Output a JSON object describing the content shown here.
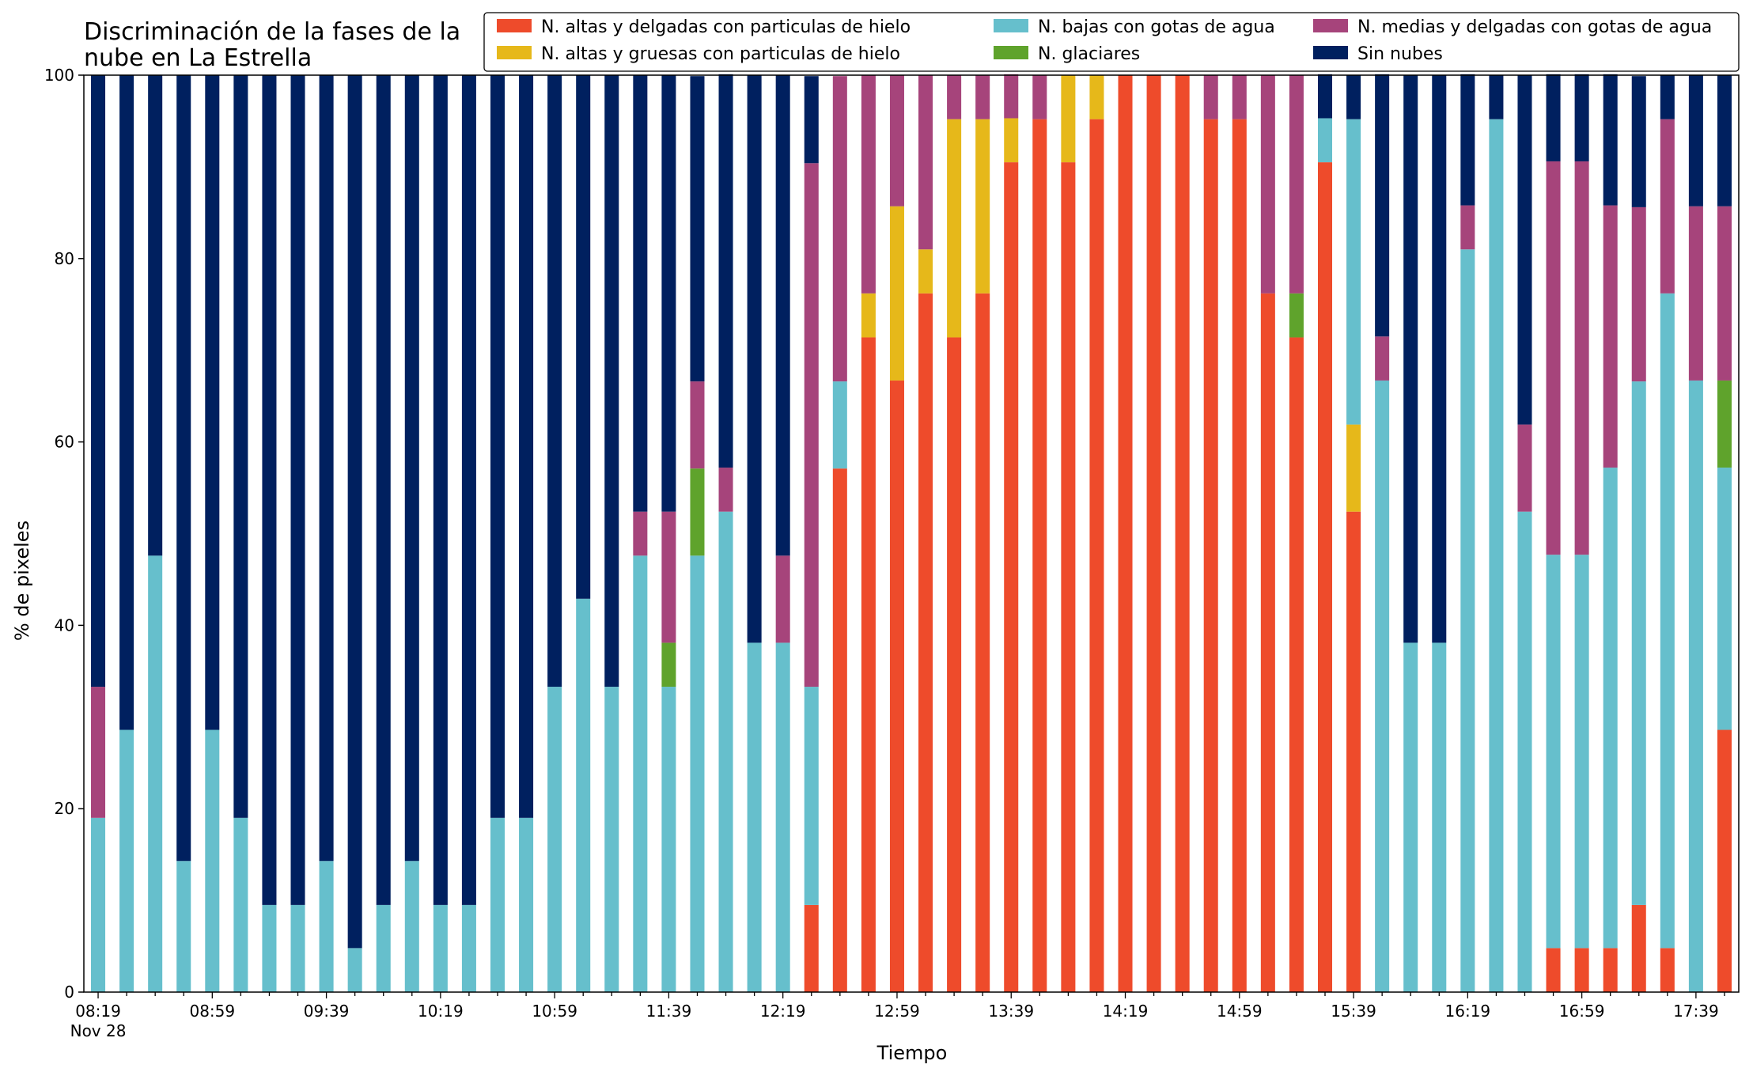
{
  "chart_data": {
    "type": "bar",
    "stacked": true,
    "title": "Discriminación de la fases de la\nnube en La Estrella",
    "xlabel": "Tiempo",
    "ylabel": "% de pixeles",
    "ylim": [
      0,
      100
    ],
    "yticks": [
      0,
      20,
      40,
      60,
      80,
      100
    ],
    "grid": false,
    "legend_position": "top-right",
    "legend_columns": 3,
    "x_tick_labels": [
      {
        "index": 0,
        "label": "08:19",
        "sublabel": "Nov 28"
      },
      {
        "index": 4,
        "label": "08:59"
      },
      {
        "index": 8,
        "label": "09:39"
      },
      {
        "index": 12,
        "label": "10:19"
      },
      {
        "index": 16,
        "label": "10:59"
      },
      {
        "index": 20,
        "label": "11:39"
      },
      {
        "index": 24,
        "label": "12:19"
      },
      {
        "index": 28,
        "label": "12:59"
      },
      {
        "index": 32,
        "label": "13:39"
      },
      {
        "index": 36,
        "label": "14:19"
      },
      {
        "index": 40,
        "label": "14:59"
      },
      {
        "index": 44,
        "label": "15:39"
      },
      {
        "index": 48,
        "label": "16:19"
      },
      {
        "index": 52,
        "label": "16:59"
      },
      {
        "index": 56,
        "label": "17:39"
      }
    ],
    "categories": [
      "08:19",
      "08:29",
      "08:39",
      "08:49",
      "08:59",
      "09:09",
      "09:19",
      "09:29",
      "09:39",
      "09:49",
      "09:59",
      "10:09",
      "10:19",
      "10:29",
      "10:39",
      "10:49",
      "10:59",
      "11:09",
      "11:19",
      "11:29",
      "11:39",
      "11:49",
      "11:59",
      "12:09",
      "12:19",
      "12:29",
      "12:39",
      "12:49",
      "12:59",
      "13:09",
      "13:19",
      "13:29",
      "13:39",
      "13:49",
      "13:59",
      "14:09",
      "14:19",
      "14:29",
      "14:39",
      "14:49",
      "14:59",
      "15:09",
      "15:19",
      "15:29",
      "15:39",
      "15:49",
      "15:59",
      "16:09",
      "16:19",
      "16:29",
      "16:39",
      "16:49",
      "16:59",
      "17:09",
      "17:19",
      "17:29",
      "17:39",
      "17:49"
    ],
    "series": [
      {
        "name": "N. altas y delgadas con particulas de hielo",
        "color": "#ee4b2b",
        "values": [
          0,
          0,
          0,
          0,
          0,
          0,
          0,
          0,
          0,
          0,
          0,
          0,
          0,
          0,
          0,
          0,
          0,
          0,
          0,
          0,
          0,
          0,
          0,
          0,
          0,
          9.5,
          57.1,
          71.4,
          66.7,
          76.2,
          71.4,
          76.2,
          90.5,
          95.2,
          90.5,
          95.2,
          100,
          100,
          100,
          95.2,
          95.2,
          76.2,
          71.4,
          90.5,
          52.4,
          0,
          0,
          0,
          0,
          0,
          0,
          4.8,
          4.8,
          4.8,
          9.5,
          4.8,
          0,
          28.6
        ]
      },
      {
        "name": "N. altas y gruesas con particulas de hielo",
        "color": "#e6b81a",
        "values": [
          0,
          0,
          0,
          0,
          0,
          0,
          0,
          0,
          0,
          0,
          0,
          0,
          0,
          0,
          0,
          0,
          0,
          0,
          0,
          0,
          0,
          0,
          0,
          0,
          0,
          0,
          0,
          4.8,
          19.0,
          4.8,
          23.8,
          19.0,
          4.8,
          0,
          9.5,
          4.8,
          0,
          0,
          0,
          0,
          0,
          0,
          0,
          0,
          9.5,
          0,
          0,
          0,
          0,
          0,
          0,
          0,
          0,
          0,
          0,
          0,
          0,
          0
        ]
      },
      {
        "name": "N. bajas con gotas de agua",
        "color": "#66bfcc",
        "values": [
          19.0,
          28.6,
          47.6,
          14.3,
          28.6,
          19.0,
          9.5,
          9.5,
          14.3,
          4.8,
          9.5,
          14.3,
          9.5,
          9.5,
          19.0,
          19.0,
          33.3,
          42.9,
          33.3,
          47.6,
          33.3,
          47.6,
          52.4,
          38.1,
          38.1,
          23.8,
          9.5,
          0,
          0,
          0,
          0,
          0,
          0,
          0,
          0,
          0,
          0,
          0,
          0,
          0,
          0,
          0,
          0,
          4.8,
          33.3,
          66.7,
          38.1,
          38.1,
          81.0,
          95.2,
          52.4,
          42.9,
          42.9,
          52.4,
          57.1,
          71.4,
          66.7,
          28.6
        ]
      },
      {
        "name": "N. glaciares",
        "color": "#5fa32c",
        "values": [
          0,
          0,
          0,
          0,
          0,
          0,
          0,
          0,
          0,
          0,
          0,
          0,
          0,
          0,
          0,
          0,
          0,
          0,
          0,
          0,
          4.8,
          9.5,
          0,
          0,
          0,
          0,
          0,
          0,
          0,
          0,
          0,
          0,
          0,
          0,
          0,
          0,
          0,
          0,
          0,
          0,
          0,
          0,
          4.8,
          0,
          0,
          0,
          0,
          0,
          0,
          0,
          0,
          0,
          0,
          0,
          0,
          0,
          0,
          9.5
        ]
      },
      {
        "name": "N. medias y delgadas con gotas de agua",
        "color": "#a6447b",
        "values": [
          14.3,
          0,
          0,
          0,
          0,
          0,
          0,
          0,
          0,
          0,
          0,
          0,
          0,
          0,
          0,
          0,
          0,
          0,
          0,
          4.8,
          14.3,
          9.5,
          4.8,
          0,
          9.5,
          57.1,
          33.3,
          23.8,
          14.3,
          19.0,
          4.8,
          4.8,
          4.8,
          4.8,
          0,
          0,
          0,
          0,
          0,
          4.8,
          4.8,
          23.8,
          23.8,
          0,
          0,
          4.8,
          0,
          0,
          4.8,
          0,
          9.5,
          42.9,
          42.9,
          28.6,
          19.0,
          19.0,
          19.0,
          19.0
        ]
      },
      {
        "name": "Sin nubes",
        "color": "#00205f",
        "values": [
          66.7,
          71.4,
          52.4,
          85.7,
          71.4,
          81.0,
          90.5,
          90.5,
          85.7,
          95.2,
          90.5,
          85.7,
          90.5,
          90.5,
          81.0,
          81.0,
          66.7,
          57.1,
          66.7,
          47.6,
          47.6,
          33.3,
          42.9,
          61.9,
          52.4,
          9.5,
          0,
          0,
          0,
          0,
          0,
          0,
          0,
          0,
          0,
          0,
          0,
          0,
          0,
          0,
          0,
          0,
          0,
          4.8,
          4.8,
          28.6,
          61.9,
          61.9,
          14.3,
          4.8,
          38.1,
          9.5,
          9.5,
          14.3,
          14.3,
          4.8,
          14.3,
          14.3
        ]
      }
    ]
  }
}
